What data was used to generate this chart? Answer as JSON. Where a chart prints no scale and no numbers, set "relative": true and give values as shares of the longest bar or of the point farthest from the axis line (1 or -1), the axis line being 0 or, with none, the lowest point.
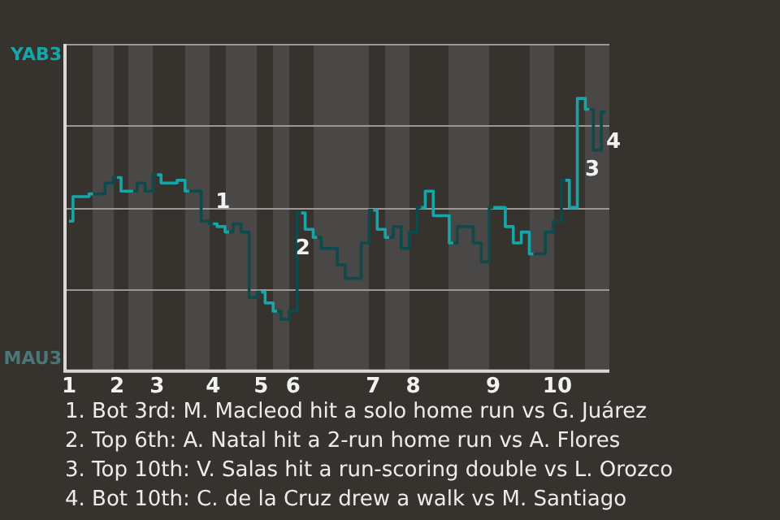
{
  "chart_data": {
    "type": "step",
    "relative": true,
    "categories": [
      "1",
      null,
      null,
      null,
      null,
      null,
      "2",
      null,
      null,
      null,
      null,
      "3",
      null,
      null,
      null,
      null,
      null,
      null,
      "4",
      null,
      null,
      null,
      null,
      null,
      "5",
      null,
      null,
      null,
      "6",
      null,
      null,
      null,
      null,
      null,
      null,
      null,
      null,
      null,
      "7",
      null,
      null,
      null,
      null,
      "8",
      null,
      null,
      null,
      null,
      null,
      null,
      null,
      null,
      null,
      "9",
      null,
      null,
      null,
      null,
      null,
      null,
      null,
      "10",
      null,
      null,
      null,
      null,
      null,
      null
    ],
    "series": [
      {
        "color": "#17a5a8",
        "values": [
          0.55,
          0.64,
          0.64,
          0.65,
          null,
          null,
          0.71,
          0.66,
          0.66,
          null,
          null,
          0.72,
          0.69,
          0.69,
          0.7,
          0.66,
          null,
          null,
          0.54,
          0.53,
          0.51,
          null,
          null,
          null,
          0.29,
          0.25,
          0.22,
          null,
          null,
          0.58,
          0.52,
          0.49,
          null,
          null,
          null,
          null,
          null,
          null,
          0.59,
          0.52,
          0.49,
          null,
          null,
          null,
          0.6,
          0.66,
          0.57,
          0.57,
          0.47,
          null,
          null,
          null,
          null,
          0.6,
          0.6,
          0.53,
          0.47,
          0.51,
          0.43,
          null,
          null,
          null,
          0.7,
          0.6,
          1,
          0.96,
          null,
          null
        ]
      },
      {
        "color": "#0e4a4c",
        "values": [
          null,
          null,
          null,
          0.65,
          0.65,
          0.69,
          0.71,
          null,
          0.66,
          0.69,
          0.66,
          0.72,
          null,
          null,
          null,
          0.66,
          0.66,
          0.55,
          0.54,
          null,
          0.51,
          0.54,
          0.51,
          0.27,
          0.29,
          null,
          0.22,
          0.19,
          0.22,
          0.58,
          null,
          0.49,
          0.45,
          0.45,
          0.39,
          0.34,
          0.34,
          0.47,
          0.59,
          null,
          0.49,
          0.53,
          0.45,
          0.51,
          0.6,
          null,
          null,
          null,
          0.47,
          0.53,
          0.53,
          0.47,
          0.4,
          0.6,
          null,
          null,
          null,
          null,
          0.43,
          0.43,
          0.51,
          0.55,
          0.7,
          null,
          null,
          0.96,
          0.81,
          0.95
        ]
      }
    ],
    "ref_lines": [
      {
        "axis": "y",
        "value": 0.3,
        "color": "#9a9896"
      },
      {
        "axis": "y",
        "value": 0.6,
        "color": "#9a9896"
      },
      {
        "axis": "y",
        "value": 0.9,
        "color": "#9a9896"
      },
      {
        "axis": "y",
        "value": 1.2,
        "color": "#9a9896"
      }
    ],
    "annotations": [
      "YAB3",
      "MAU3",
      "3",
      "4",
      {
        "text": "1",
        "x": "4",
        "y": 0.6
      },
      {
        "text": "2",
        "x": "6",
        "y": 0.43
      },
      "1. Bot 3rd: M. Macleod hit a solo home run vs G. Juárez",
      "2. Top 6th: A. Natal hit a 2-run home run vs A. Flores",
      "3. Top 10th: V. Salas hit a run-scoring double vs L. Orozco",
      "4. Bot 10th: C. de la Cruz drew a walk vs M. Santiago"
    ]
  }
}
